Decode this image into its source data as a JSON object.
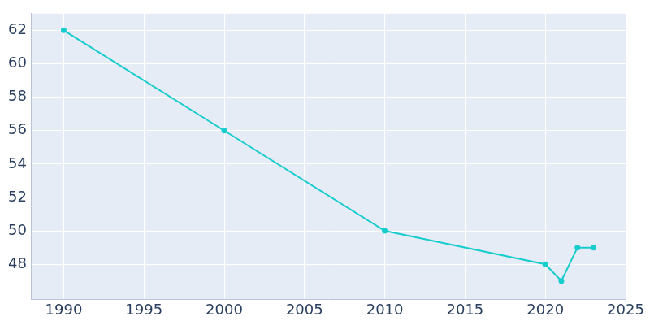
{
  "chart_data": {
    "type": "line",
    "x": [
      1990,
      2000,
      2010,
      2020,
      2021,
      2022,
      2023
    ],
    "values": [
      62,
      56,
      50,
      48,
      47,
      49,
      49
    ],
    "color": "#17cccc",
    "marker": "circle",
    "xlim": [
      1988,
      2025
    ],
    "xticks": [
      1990,
      1995,
      2000,
      2005,
      2010,
      2015,
      2020,
      2025
    ],
    "ylim": [
      45.9,
      63
    ],
    "yticks": [
      48,
      50,
      52,
      54,
      56,
      58,
      60,
      62
    ],
    "grid": true
  }
}
